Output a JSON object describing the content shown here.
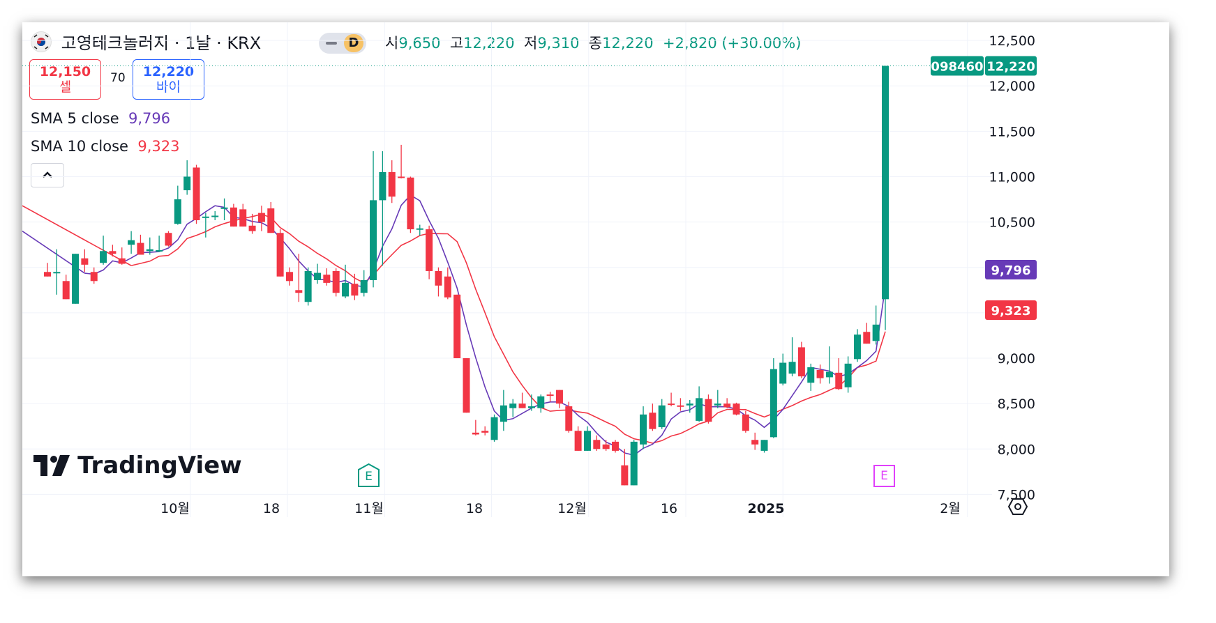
{
  "header": {
    "flag_icon": "korea-flag-icon",
    "symbol_title": "고영테크놀러지 · 1날 · KRX",
    "interval_badge": "D",
    "ohlc": {
      "open_label": "시",
      "open": "9,650",
      "high_label": "고",
      "high": "12,220",
      "low_label": "저",
      "low": "9,310",
      "close_label": "종",
      "close": "12,220",
      "change": "+2,820 (+30.00%)"
    }
  },
  "trade": {
    "sell_price": "12,150",
    "sell_label": "셀",
    "spread": "70",
    "buy_price": "12,220",
    "buy_label": "바이"
  },
  "indicators": [
    {
      "name": "SMA 5 close",
      "value": "9,796",
      "color": "#673ab7"
    },
    {
      "name": "SMA 10 close",
      "value": "9,323",
      "color": "#f23645"
    }
  ],
  "collapse_icon": "chevron-up-icon",
  "watermark": "TradingView",
  "settings_icon": "gear-icon",
  "price_tags": {
    "symbol": "098460",
    "last": "12,220",
    "sma5": "9,796",
    "sma10": "9,323"
  },
  "event_markers": [
    "E",
    "E"
  ],
  "colors": {
    "up": "#089981",
    "down": "#f23645",
    "sma5": "#673ab7",
    "sma10": "#f23645",
    "earnings1": "#089981",
    "earnings2": "#e040fb"
  },
  "chart_data": {
    "type": "candlestick",
    "ylim": [
      7250,
      12700
    ],
    "y_ticks": [
      7500,
      8000,
      8500,
      9000,
      9500,
      10000,
      10500,
      11000,
      11500,
      12000,
      12500
    ],
    "y_tick_labels": [
      "7,500",
      "8,000",
      "8,500",
      "9,000",
      "9,500",
      "10,000",
      "10,500",
      "11,000",
      "11,500",
      "12,000",
      "12,500"
    ],
    "x_tick_labels": [
      {
        "label": "10월",
        "index": 8,
        "bold": false
      },
      {
        "label": "18",
        "index": 13,
        "bold": false
      },
      {
        "label": "11월",
        "index": 18,
        "bold": false
      },
      {
        "label": "18",
        "index": 23.5,
        "bold": false
      },
      {
        "label": "12월",
        "index": 28.5,
        "bold": false
      },
      {
        "label": "16",
        "index": 33.5,
        "bold": false
      },
      {
        "label": "2025",
        "index": 38.5,
        "bold": true
      },
      {
        "label": "2월",
        "index": 48,
        "bold": false
      }
    ],
    "candles": [
      {
        "o": 9950,
        "h": 10050,
        "l": 9900,
        "c": 9900
      },
      {
        "o": 9950,
        "h": 10200,
        "l": 9700,
        "c": 9900
      },
      {
        "o": 9800,
        "h": 9900,
        "l": 9650,
        "c": 9650
      },
      {
        "o": 9600,
        "h": 10150,
        "l": 9600,
        "c": 10150
      },
      {
        "o": 10100,
        "h": 10200,
        "l": 9950,
        "c": 10000
      },
      {
        "o": 9950,
        "h": 10000,
        "l": 9820,
        "c": 9850
      },
      {
        "o": 10050,
        "h": 10350,
        "l": 10050,
        "c": 10200
      },
      {
        "o": 10200,
        "h": 10300,
        "l": 10100,
        "c": 10150
      },
      {
        "o": 10100,
        "h": 10300,
        "l": 10030,
        "c": 10050
      },
      {
        "o": 10250,
        "h": 10400,
        "l": 10150,
        "c": 10300
      },
      {
        "o": 10300,
        "h": 10400,
        "l": 10150,
        "c": 10150
      },
      {
        "o": 10200,
        "h": 10300,
        "l": 10150,
        "c": 10200
      },
      {
        "o": 10200,
        "h": 10350,
        "l": 10150,
        "c": 10200
      },
      {
        "o": 10380,
        "h": 10400,
        "l": 10250,
        "c": 10250
      },
      {
        "o": 10480,
        "h": 10900,
        "l": 10450,
        "c": 10750
      },
      {
        "o": 10850,
        "h": 11150,
        "l": 10800,
        "c": 11000
      },
      {
        "o": 11050,
        "h": 11100,
        "l": 10500,
        "c": 10550
      },
      {
        "o": 10550,
        "h": 10600,
        "l": 10350,
        "c": 10550
      },
      {
        "o": 10550,
        "h": 10600,
        "l": 10450,
        "c": 10550
      },
      {
        "o": 10650,
        "h": 10750,
        "l": 10520,
        "c": 10650
      },
      {
        "o": 10650,
        "h": 10700,
        "l": 10450,
        "c": 10450
      },
      {
        "o": 10600,
        "h": 10700,
        "l": 10450,
        "c": 10450
      },
      {
        "o": 10450,
        "h": 10600,
        "l": 10350,
        "c": 10400
      },
      {
        "o": 10600,
        "h": 10700,
        "l": 10400,
        "c": 10500
      },
      {
        "o": 10650,
        "h": 10720,
        "l": 10380,
        "c": 10380
      },
      {
        "o": 10380,
        "h": 10420,
        "l": 9900,
        "c": 9900
      },
      {
        "o": 9950,
        "h": 10000,
        "l": 9800,
        "c": 9850
      },
      {
        "o": 9750,
        "h": 10150,
        "l": 9700,
        "c": 9750
      },
      {
        "o": 9650,
        "h": 10000,
        "l": 9600,
        "c": 9950
      },
      {
        "o": 9850,
        "h": 10050,
        "l": 9800,
        "c": 9950
      },
      {
        "o": 9900,
        "h": 10000,
        "l": 9800,
        "c": 9930
      },
      {
        "o": 9950,
        "h": 10000,
        "l": 9700,
        "c": 9780
      },
      {
        "o": 9700,
        "h": 10000,
        "l": 9680,
        "c": 9850
      },
      {
        "o": 9800,
        "h": 9950,
        "l": 9700,
        "c": 9800
      },
      {
        "o": 9800,
        "h": 9900,
        "l": 9700,
        "c": 9900
      }
    ],
    "sma5": [],
    "sma10": []
  }
}
